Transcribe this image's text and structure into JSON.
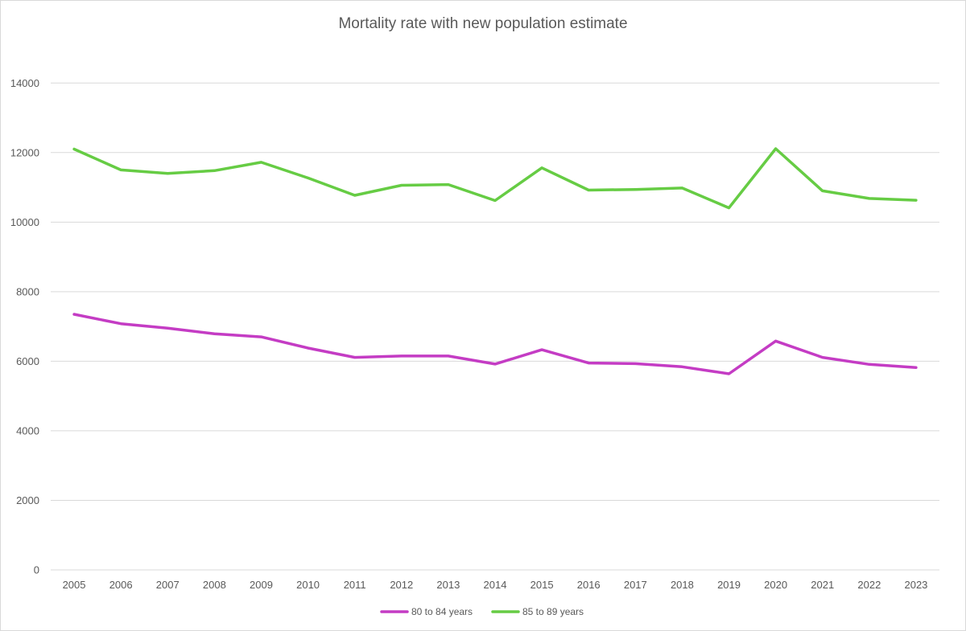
{
  "chart_data": {
    "type": "line",
    "title": "Mortality rate with new population estimate",
    "xlabel": "",
    "ylabel": "",
    "ylim": [
      0,
      15000
    ],
    "yticks": [
      0,
      2000,
      4000,
      6000,
      8000,
      10000,
      12000,
      14000
    ],
    "grid": true,
    "legend_position": "bottom",
    "categories": [
      "2005",
      "2006",
      "2007",
      "2008",
      "2009",
      "2010",
      "2011",
      "2012",
      "2013",
      "2014",
      "2015",
      "2016",
      "2017",
      "2018",
      "2019",
      "2020",
      "2021",
      "2022",
      "2023"
    ],
    "series": [
      {
        "name": "80 to 84 years",
        "color": "#c43cc4",
        "values": [
          7350,
          7080,
          6950,
          6790,
          6700,
          6380,
          6110,
          6150,
          6150,
          5920,
          6330,
          5950,
          5930,
          5840,
          5640,
          6580,
          6110,
          5910,
          5820
        ]
      },
      {
        "name": "85 to 89 years",
        "color": "#66cc44",
        "values": [
          12100,
          11500,
          11400,
          11480,
          11720,
          11270,
          10770,
          11060,
          11080,
          10620,
          11560,
          10920,
          10940,
          10980,
          10410,
          12110,
          10900,
          10680,
          10630
        ]
      }
    ]
  }
}
